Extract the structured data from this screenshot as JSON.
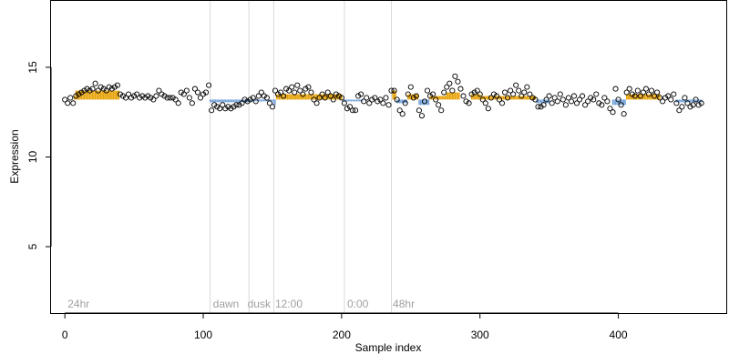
{
  "chart_data": {
    "type": "scatter",
    "title": "",
    "xlabel": "Sample index",
    "ylabel": "Expression",
    "xlim": [
      -10,
      478
    ],
    "ylim": [
      1.3,
      18.7
    ],
    "xticks": [
      0,
      100,
      200,
      300,
      400
    ],
    "yticks": [
      5,
      10,
      15
    ],
    "grid": false,
    "vlines": [
      105,
      133,
      151,
      202,
      236
    ],
    "annotations": [
      {
        "x": 2,
        "text": "24hr"
      },
      {
        "x": 107,
        "text": "dawn"
      },
      {
        "x": 132,
        "text": "dusk"
      },
      {
        "x": 152,
        "text": "12:00"
      },
      {
        "x": 204,
        "text": "0:00"
      },
      {
        "x": 237,
        "text": "48hr"
      }
    ],
    "colors": {
      "high": "#e69f00",
      "low": "#6f9fd8",
      "point_stroke": "#000000",
      "guide": "#d9d9d9",
      "annotation": "#a0a0a0"
    },
    "segments": [
      {
        "x": [
          0,
          6
        ],
        "y": 13.2,
        "dir": "low"
      },
      {
        "x": 7,
        "y": 13.4,
        "dir": "high"
      },
      {
        "x": [
          8,
          39
        ],
        "y": 13.7,
        "dir": "high"
      },
      {
        "x": [
          40,
          104
        ],
        "y": 13.35,
        "dir": "none"
      },
      {
        "x": [
          105,
          132
        ],
        "y": 13.05,
        "dir": "low"
      },
      {
        "x": [
          133,
          150
        ],
        "y": 13.1,
        "dir": "low"
      },
      {
        "x": [
          151,
          152
        ],
        "y": 12.9,
        "dir": "low"
      },
      {
        "x": [
          153,
          200
        ],
        "y": 13.5,
        "dir": "high"
      },
      {
        "x": [
          201,
          215
        ],
        "y": 13.1,
        "dir": "low"
      },
      {
        "x": [
          216,
          236
        ],
        "y": 13.2,
        "dir": "none"
      },
      {
        "x": [
          237,
          239
        ],
        "y": 13.7,
        "dir": "high"
      },
      {
        "x": [
          240,
          247
        ],
        "y": 13.0,
        "dir": "low"
      },
      {
        "x": [
          248,
          255
        ],
        "y": 13.5,
        "dir": "high"
      },
      {
        "x": [
          256,
          263
        ],
        "y": 12.9,
        "dir": "low"
      },
      {
        "x": [
          264,
          275
        ],
        "y": 13.4,
        "dir": "high"
      },
      {
        "x": [
          276,
          285
        ],
        "y": 13.6,
        "dir": "high"
      },
      {
        "x": [
          286,
          293
        ],
        "y": 13.3,
        "dir": "none"
      },
      {
        "x": [
          294,
          300
        ],
        "y": 13.5,
        "dir": "high"
      },
      {
        "x": [
          301,
          340
        ],
        "y": 13.4,
        "dir": "high"
      },
      {
        "x": [
          341,
          350
        ],
        "y": 13.0,
        "dir": "low"
      },
      {
        "x": [
          351,
          395
        ],
        "y": 13.1,
        "dir": "none"
      },
      {
        "x": [
          396,
          405
        ],
        "y": 12.9,
        "dir": "low"
      },
      {
        "x": [
          406,
          430
        ],
        "y": 13.5,
        "dir": "high"
      },
      {
        "x": [
          431,
          441
        ],
        "y": 13.1,
        "dir": "none"
      },
      {
        "x": [
          442,
          460
        ],
        "y": 13.05,
        "dir": "low"
      }
    ],
    "points": [
      {
        "x": 0,
        "y": 13.2
      },
      {
        "x": 2,
        "y": 13.0
      },
      {
        "x": 4,
        "y": 13.3
      },
      {
        "x": 6,
        "y": 13.0
      },
      {
        "x": 8,
        "y": 13.4
      },
      {
        "x": 10,
        "y": 13.5
      },
      {
        "x": 12,
        "y": 13.6
      },
      {
        "x": 14,
        "y": 13.7
      },
      {
        "x": 16,
        "y": 13.8
      },
      {
        "x": 18,
        "y": 13.7
      },
      {
        "x": 20,
        "y": 13.8
      },
      {
        "x": 22,
        "y": 14.1
      },
      {
        "x": 24,
        "y": 13.7
      },
      {
        "x": 26,
        "y": 13.9
      },
      {
        "x": 28,
        "y": 13.8
      },
      {
        "x": 30,
        "y": 13.7
      },
      {
        "x": 32,
        "y": 13.9
      },
      {
        "x": 34,
        "y": 13.8
      },
      {
        "x": 36,
        "y": 13.9
      },
      {
        "x": 38,
        "y": 14.0
      },
      {
        "x": 40,
        "y": 13.5
      },
      {
        "x": 42,
        "y": 13.4
      },
      {
        "x": 44,
        "y": 13.3
      },
      {
        "x": 46,
        "y": 13.5
      },
      {
        "x": 48,
        "y": 13.3
      },
      {
        "x": 50,
        "y": 13.4
      },
      {
        "x": 52,
        "y": 13.5
      },
      {
        "x": 54,
        "y": 13.3
      },
      {
        "x": 56,
        "y": 13.4
      },
      {
        "x": 58,
        "y": 13.3
      },
      {
        "x": 60,
        "y": 13.4
      },
      {
        "x": 62,
        "y": 13.3
      },
      {
        "x": 64,
        "y": 13.2
      },
      {
        "x": 66,
        "y": 13.4
      },
      {
        "x": 68,
        "y": 13.7
      },
      {
        "x": 70,
        "y": 13.5
      },
      {
        "x": 72,
        "y": 13.4
      },
      {
        "x": 74,
        "y": 13.3
      },
      {
        "x": 76,
        "y": 13.3
      },
      {
        "x": 78,
        "y": 13.3
      },
      {
        "x": 80,
        "y": 13.2
      },
      {
        "x": 82,
        "y": 13.0
      },
      {
        "x": 84,
        "y": 13.6
      },
      {
        "x": 86,
        "y": 13.5
      },
      {
        "x": 88,
        "y": 13.7
      },
      {
        "x": 90,
        "y": 13.3
      },
      {
        "x": 92,
        "y": 13.0
      },
      {
        "x": 94,
        "y": 13.8
      },
      {
        "x": 96,
        "y": 13.6
      },
      {
        "x": 98,
        "y": 13.3
      },
      {
        "x": 100,
        "y": 13.5
      },
      {
        "x": 102,
        "y": 13.6
      },
      {
        "x": 104,
        "y": 14.0
      },
      {
        "x": 106,
        "y": 12.6
      },
      {
        "x": 108,
        "y": 12.9
      },
      {
        "x": 110,
        "y": 12.8
      },
      {
        "x": 112,
        "y": 12.7
      },
      {
        "x": 114,
        "y": 12.9
      },
      {
        "x": 116,
        "y": 12.7
      },
      {
        "x": 118,
        "y": 12.8
      },
      {
        "x": 120,
        "y": 12.7
      },
      {
        "x": 122,
        "y": 12.8
      },
      {
        "x": 124,
        "y": 12.9
      },
      {
        "x": 126,
        "y": 12.9
      },
      {
        "x": 128,
        "y": 13.0
      },
      {
        "x": 130,
        "y": 13.2
      },
      {
        "x": 132,
        "y": 13.1
      },
      {
        "x": 134,
        "y": 13.2
      },
      {
        "x": 136,
        "y": 13.3
      },
      {
        "x": 138,
        "y": 13.1
      },
      {
        "x": 140,
        "y": 13.4
      },
      {
        "x": 142,
        "y": 13.6
      },
      {
        "x": 144,
        "y": 13.4
      },
      {
        "x": 146,
        "y": 13.3
      },
      {
        "x": 148,
        "y": 13.0
      },
      {
        "x": 150,
        "y": 12.8
      },
      {
        "x": 152,
        "y": 13.7
      },
      {
        "x": 154,
        "y": 13.5
      },
      {
        "x": 156,
        "y": 13.6
      },
      {
        "x": 158,
        "y": 13.4
      },
      {
        "x": 160,
        "y": 13.8
      },
      {
        "x": 162,
        "y": 13.7
      },
      {
        "x": 164,
        "y": 13.9
      },
      {
        "x": 166,
        "y": 13.6
      },
      {
        "x": 168,
        "y": 14.0
      },
      {
        "x": 170,
        "y": 13.7
      },
      {
        "x": 172,
        "y": 13.5
      },
      {
        "x": 174,
        "y": 13.8
      },
      {
        "x": 176,
        "y": 13.9
      },
      {
        "x": 178,
        "y": 13.6
      },
      {
        "x": 180,
        "y": 13.2
      },
      {
        "x": 182,
        "y": 13.0
      },
      {
        "x": 184,
        "y": 13.3
      },
      {
        "x": 186,
        "y": 13.5
      },
      {
        "x": 188,
        "y": 13.3
      },
      {
        "x": 190,
        "y": 13.6
      },
      {
        "x": 192,
        "y": 13.4
      },
      {
        "x": 194,
        "y": 13.2
      },
      {
        "x": 196,
        "y": 13.5
      },
      {
        "x": 198,
        "y": 13.4
      },
      {
        "x": 200,
        "y": 13.3
      },
      {
        "x": 202,
        "y": 13.0
      },
      {
        "x": 204,
        "y": 12.7
      },
      {
        "x": 206,
        "y": 12.8
      },
      {
        "x": 208,
        "y": 12.6
      },
      {
        "x": 210,
        "y": 12.6
      },
      {
        "x": 212,
        "y": 13.4
      },
      {
        "x": 214,
        "y": 13.5
      },
      {
        "x": 216,
        "y": 13.1
      },
      {
        "x": 218,
        "y": 13.3
      },
      {
        "x": 220,
        "y": 13.0
      },
      {
        "x": 222,
        "y": 13.2
      },
      {
        "x": 224,
        "y": 13.3
      },
      {
        "x": 226,
        "y": 13.1
      },
      {
        "x": 228,
        "y": 13.2
      },
      {
        "x": 230,
        "y": 13.0
      },
      {
        "x": 232,
        "y": 13.3
      },
      {
        "x": 234,
        "y": 12.9
      },
      {
        "x": 236,
        "y": 13.7
      },
      {
        "x": 238,
        "y": 13.7
      },
      {
        "x": 240,
        "y": 13.2
      },
      {
        "x": 242,
        "y": 12.6
      },
      {
        "x": 244,
        "y": 12.4
      },
      {
        "x": 246,
        "y": 13.0
      },
      {
        "x": 248,
        "y": 13.5
      },
      {
        "x": 250,
        "y": 13.9
      },
      {
        "x": 252,
        "y": 13.3
      },
      {
        "x": 254,
        "y": 13.4
      },
      {
        "x": 256,
        "y": 12.6
      },
      {
        "x": 258,
        "y": 12.3
      },
      {
        "x": 260,
        "y": 13.1
      },
      {
        "x": 262,
        "y": 13.7
      },
      {
        "x": 264,
        "y": 13.4
      },
      {
        "x": 266,
        "y": 13.5
      },
      {
        "x": 268,
        "y": 13.2
      },
      {
        "x": 270,
        "y": 12.9
      },
      {
        "x": 272,
        "y": 12.6
      },
      {
        "x": 274,
        "y": 13.6
      },
      {
        "x": 276,
        "y": 13.9
      },
      {
        "x": 278,
        "y": 14.1
      },
      {
        "x": 280,
        "y": 13.7
      },
      {
        "x": 282,
        "y": 14.5
      },
      {
        "x": 284,
        "y": 14.2
      },
      {
        "x": 286,
        "y": 13.8
      },
      {
        "x": 288,
        "y": 13.4
      },
      {
        "x": 290,
        "y": 13.1
      },
      {
        "x": 292,
        "y": 13.0
      },
      {
        "x": 294,
        "y": 13.5
      },
      {
        "x": 296,
        "y": 13.6
      },
      {
        "x": 298,
        "y": 13.7
      },
      {
        "x": 300,
        "y": 13.5
      },
      {
        "x": 302,
        "y": 13.2
      },
      {
        "x": 304,
        "y": 13.0
      },
      {
        "x": 306,
        "y": 12.7
      },
      {
        "x": 308,
        "y": 13.3
      },
      {
        "x": 310,
        "y": 13.5
      },
      {
        "x": 312,
        "y": 13.4
      },
      {
        "x": 314,
        "y": 13.2
      },
      {
        "x": 316,
        "y": 13.0
      },
      {
        "x": 318,
        "y": 13.6
      },
      {
        "x": 320,
        "y": 13.3
      },
      {
        "x": 322,
        "y": 13.7
      },
      {
        "x": 324,
        "y": 13.5
      },
      {
        "x": 326,
        "y": 14.0
      },
      {
        "x": 328,
        "y": 13.7
      },
      {
        "x": 330,
        "y": 13.4
      },
      {
        "x": 332,
        "y": 13.6
      },
      {
        "x": 334,
        "y": 13.9
      },
      {
        "x": 336,
        "y": 13.5
      },
      {
        "x": 338,
        "y": 13.3
      },
      {
        "x": 340,
        "y": 13.2
      },
      {
        "x": 342,
        "y": 12.8
      },
      {
        "x": 344,
        "y": 12.8
      },
      {
        "x": 346,
        "y": 12.9
      },
      {
        "x": 348,
        "y": 13.2
      },
      {
        "x": 350,
        "y": 13.4
      },
      {
        "x": 352,
        "y": 13.0
      },
      {
        "x": 354,
        "y": 13.3
      },
      {
        "x": 356,
        "y": 13.1
      },
      {
        "x": 358,
        "y": 13.5
      },
      {
        "x": 360,
        "y": 13.2
      },
      {
        "x": 362,
        "y": 12.9
      },
      {
        "x": 364,
        "y": 13.3
      },
      {
        "x": 366,
        "y": 13.1
      },
      {
        "x": 368,
        "y": 13.4
      },
      {
        "x": 370,
        "y": 13.0
      },
      {
        "x": 372,
        "y": 13.2
      },
      {
        "x": 374,
        "y": 13.4
      },
      {
        "x": 376,
        "y": 12.9
      },
      {
        "x": 378,
        "y": 13.1
      },
      {
        "x": 380,
        "y": 13.3
      },
      {
        "x": 382,
        "y": 13.2
      },
      {
        "x": 384,
        "y": 13.5
      },
      {
        "x": 386,
        "y": 13.0
      },
      {
        "x": 388,
        "y": 12.9
      },
      {
        "x": 390,
        "y": 13.3
      },
      {
        "x": 392,
        "y": 13.1
      },
      {
        "x": 394,
        "y": 12.7
      },
      {
        "x": 396,
        "y": 12.5
      },
      {
        "x": 398,
        "y": 13.8
      },
      {
        "x": 400,
        "y": 13.2
      },
      {
        "x": 402,
        "y": 12.9
      },
      {
        "x": 404,
        "y": 12.4
      },
      {
        "x": 406,
        "y": 13.6
      },
      {
        "x": 408,
        "y": 13.8
      },
      {
        "x": 410,
        "y": 13.5
      },
      {
        "x": 412,
        "y": 13.4
      },
      {
        "x": 414,
        "y": 13.7
      },
      {
        "x": 416,
        "y": 13.4
      },
      {
        "x": 418,
        "y": 13.6
      },
      {
        "x": 420,
        "y": 13.8
      },
      {
        "x": 422,
        "y": 13.5
      },
      {
        "x": 424,
        "y": 13.7
      },
      {
        "x": 426,
        "y": 13.4
      },
      {
        "x": 428,
        "y": 13.6
      },
      {
        "x": 430,
        "y": 13.3
      },
      {
        "x": 432,
        "y": 13.1
      },
      {
        "x": 434,
        "y": 13.3
      },
      {
        "x": 436,
        "y": 13.4
      },
      {
        "x": 438,
        "y": 13.2
      },
      {
        "x": 440,
        "y": 13.5
      },
      {
        "x": 442,
        "y": 13.0
      },
      {
        "x": 444,
        "y": 12.6
      },
      {
        "x": 446,
        "y": 12.8
      },
      {
        "x": 448,
        "y": 13.3
      },
      {
        "x": 450,
        "y": 13.0
      },
      {
        "x": 452,
        "y": 12.8
      },
      {
        "x": 454,
        "y": 12.9
      },
      {
        "x": 456,
        "y": 13.2
      },
      {
        "x": 458,
        "y": 12.9
      },
      {
        "x": 460,
        "y": 13.0
      }
    ]
  }
}
